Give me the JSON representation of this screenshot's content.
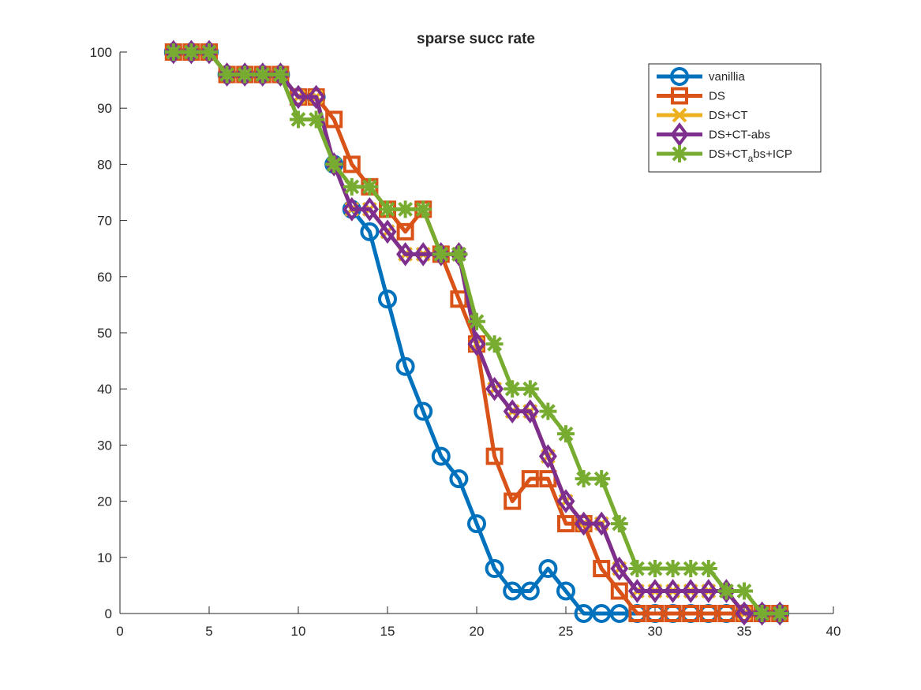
{
  "chart_data": {
    "type": "line",
    "title": "sparse succ rate",
    "xlabel": "",
    "ylabel": "",
    "xlim": [
      0,
      40
    ],
    "ylim": [
      0,
      100
    ],
    "xticks": [
      0,
      5,
      10,
      15,
      20,
      25,
      30,
      35,
      40
    ],
    "yticks": [
      0,
      10,
      20,
      30,
      40,
      50,
      60,
      70,
      80,
      90,
      100
    ],
    "grid": false,
    "legend_position": "top-right",
    "x": [
      3,
      4,
      5,
      6,
      7,
      8,
      9,
      10,
      11,
      12,
      13,
      14,
      15,
      16,
      17,
      18,
      19,
      20,
      21,
      22,
      23,
      24,
      25,
      26,
      27,
      28,
      29,
      30,
      31,
      32,
      33,
      34,
      35,
      36,
      37
    ],
    "series": [
      {
        "name": "vanillia",
        "color": "#0072BD",
        "marker": "circle",
        "values": [
          100,
          100,
          100,
          96,
          96,
          96,
          96,
          92,
          92,
          80,
          72,
          68,
          56,
          44,
          36,
          28,
          24,
          16,
          8,
          4,
          4,
          8,
          4,
          0,
          0,
          0,
          0,
          0,
          0,
          0,
          0,
          0,
          0,
          0,
          0
        ]
      },
      {
        "name": "DS",
        "color": "#D95319",
        "marker": "square",
        "values": [
          100,
          100,
          100,
          96,
          96,
          96,
          96,
          92,
          92,
          88,
          80,
          76,
          72,
          68,
          72,
          64,
          56,
          48,
          28,
          20,
          24,
          24,
          16,
          16,
          8,
          4,
          0,
          0,
          0,
          0,
          0,
          0,
          0,
          0,
          0
        ]
      },
      {
        "name": "DS+CT",
        "color": "#EDB120",
        "marker": "x",
        "values": [
          100,
          100,
          100,
          96,
          96,
          96,
          96,
          92,
          92,
          80,
          72,
          72,
          68,
          64,
          64,
          64,
          64,
          48,
          40,
          36,
          36,
          28,
          20,
          16,
          16,
          8,
          4,
          4,
          4,
          4,
          4,
          4,
          0,
          0,
          0
        ]
      },
      {
        "name": "DS+CT-abs",
        "color": "#7E2F8E",
        "marker": "diamond",
        "values": [
          100,
          100,
          100,
          96,
          96,
          96,
          96,
          92,
          92,
          80,
          72,
          72,
          68,
          64,
          64,
          64,
          64,
          48,
          40,
          36,
          36,
          28,
          20,
          16,
          16,
          8,
          4,
          4,
          4,
          4,
          4,
          4,
          0,
          0,
          0
        ]
      },
      {
        "name": "DS+CT_abs+ICP",
        "color": "#77AC30",
        "marker": "asterisk",
        "values": [
          100,
          100,
          100,
          96,
          96,
          96,
          96,
          88,
          88,
          80,
          76,
          76,
          72,
          72,
          72,
          64,
          64,
          52,
          48,
          40,
          40,
          36,
          32,
          24,
          24,
          16,
          8,
          8,
          8,
          8,
          8,
          4,
          4,
          0,
          0
        ]
      }
    ],
    "legend": [
      {
        "main": "vanillia",
        "sub": "",
        "rest": ""
      },
      {
        "main": "DS",
        "sub": "",
        "rest": ""
      },
      {
        "main": "DS+CT",
        "sub": "",
        "rest": ""
      },
      {
        "main": "DS+CT-abs",
        "sub": "",
        "rest": ""
      },
      {
        "main": "DS+CT",
        "sub": "a",
        "rest": "bs+ICP"
      }
    ]
  }
}
